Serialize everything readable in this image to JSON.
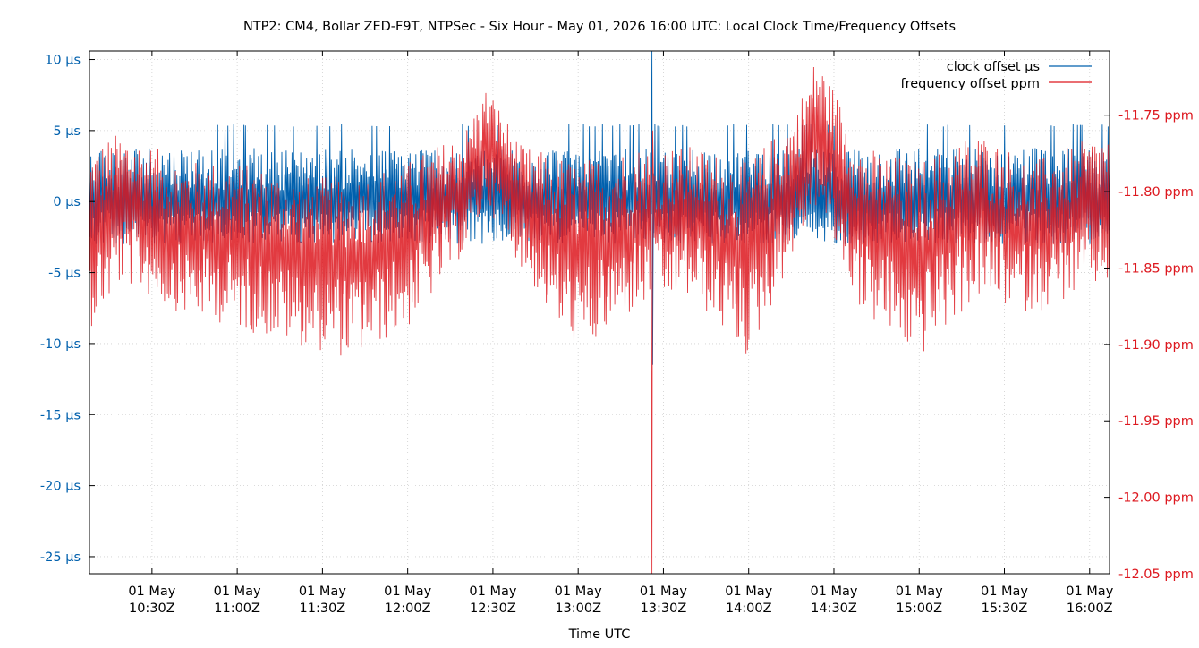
{
  "chart_data": {
    "type": "line",
    "title": "NTP2: CM4, Bollar ZED-F9T, NTPSec - Six Hour - May 01, 2026 16:00 UTC: Local Clock Time/Frequency Offsets",
    "xlabel": "Time UTC",
    "ylabel": "",
    "y2label": "",
    "grid": true,
    "legend_position": "top-right",
    "x_ticks": [
      {
        "date": "01 May",
        "time": "10:30Z"
      },
      {
        "date": "01 May",
        "time": "11:00Z"
      },
      {
        "date": "01 May",
        "time": "11:30Z"
      },
      {
        "date": "01 May",
        "time": "12:00Z"
      },
      {
        "date": "01 May",
        "time": "12:30Z"
      },
      {
        "date": "01 May",
        "time": "13:00Z"
      },
      {
        "date": "01 May",
        "time": "13:30Z"
      },
      {
        "date": "01 May",
        "time": "14:00Z"
      },
      {
        "date": "01 May",
        "time": "14:30Z"
      },
      {
        "date": "01 May",
        "time": "15:00Z"
      },
      {
        "date": "01 May",
        "time": "15:30Z"
      },
      {
        "date": "01 May",
        "time": "16:00Z"
      }
    ],
    "x_range": [
      "10:08Z",
      "16:07Z"
    ],
    "y_left": {
      "ticks": [
        10,
        5,
        0,
        -5,
        -10,
        -15,
        -20,
        -25
      ],
      "tick_labels": [
        "10 µs",
        "5 µs",
        "0 µs",
        "-5 µs",
        "-10 µs",
        "-15 µs",
        "-20 µs",
        "-25 µs"
      ],
      "range": [
        -26.2,
        10.6
      ],
      "color": "#0060ad"
    },
    "y_right": {
      "ticks": [
        -11.75,
        -11.8,
        -11.85,
        -11.9,
        -11.95,
        -12.0,
        -12.05
      ],
      "tick_labels": [
        "-11.75 ppm",
        "-11.80 ppm",
        "-11.85 ppm",
        "-11.90 ppm",
        "-11.95 ppm",
        "-12.00 ppm",
        "-12.05 ppm"
      ],
      "range": [
        -12.05,
        -11.708
      ],
      "color": "#dd181f"
    },
    "series": [
      {
        "name": "clock offset µs",
        "axis": "left",
        "color": "#0060ad",
        "baseline": 0,
        "typical_range": [
          -3,
          4
        ],
        "peaks": [
          {
            "time": "13:26Z",
            "min": -11.5,
            "max": 10.6
          }
        ]
      },
      {
        "name": "frequency offset ppm",
        "axis": "right",
        "color": "#dd181f",
        "envelope_hourly": [
          {
            "time": "10:08Z",
            "low": -11.89,
            "high": -11.77
          },
          {
            "time": "10:20Z",
            "low": -11.86,
            "high": -11.76
          },
          {
            "time": "10:40Z",
            "low": -11.88,
            "high": -11.78
          },
          {
            "time": "11:00Z",
            "low": -11.89,
            "high": -11.78
          },
          {
            "time": "11:20Z",
            "low": -11.9,
            "high": -11.79
          },
          {
            "time": "11:40Z",
            "low": -11.91,
            "high": -11.79
          },
          {
            "time": "12:00Z",
            "low": -11.89,
            "high": -11.78
          },
          {
            "time": "12:20Z",
            "low": -11.84,
            "high": -11.76
          },
          {
            "time": "12:28Z",
            "low": -11.81,
            "high": -11.73
          },
          {
            "time": "12:40Z",
            "low": -11.85,
            "high": -11.77
          },
          {
            "time": "13:00Z",
            "low": -11.91,
            "high": -11.78
          },
          {
            "time": "13:20Z",
            "low": -11.88,
            "high": -11.77
          },
          {
            "time": "13:40Z",
            "low": -11.87,
            "high": -11.77
          },
          {
            "time": "14:00Z",
            "low": -11.91,
            "high": -11.78
          },
          {
            "time": "14:16Z",
            "low": -11.84,
            "high": -11.75
          },
          {
            "time": "14:24Z",
            "low": -11.81,
            "high": -11.71
          },
          {
            "time": "14:40Z",
            "low": -11.88,
            "high": -11.77
          },
          {
            "time": "15:00Z",
            "low": -11.91,
            "high": -11.78
          },
          {
            "time": "15:20Z",
            "low": -11.87,
            "high": -11.76
          },
          {
            "time": "15:40Z",
            "low": -11.88,
            "high": -11.78
          },
          {
            "time": "16:07Z",
            "low": -11.86,
            "high": -11.76
          }
        ],
        "peaks": [
          {
            "time": "13:26Z",
            "min": -12.05,
            "max": -11.76
          }
        ]
      }
    ]
  }
}
